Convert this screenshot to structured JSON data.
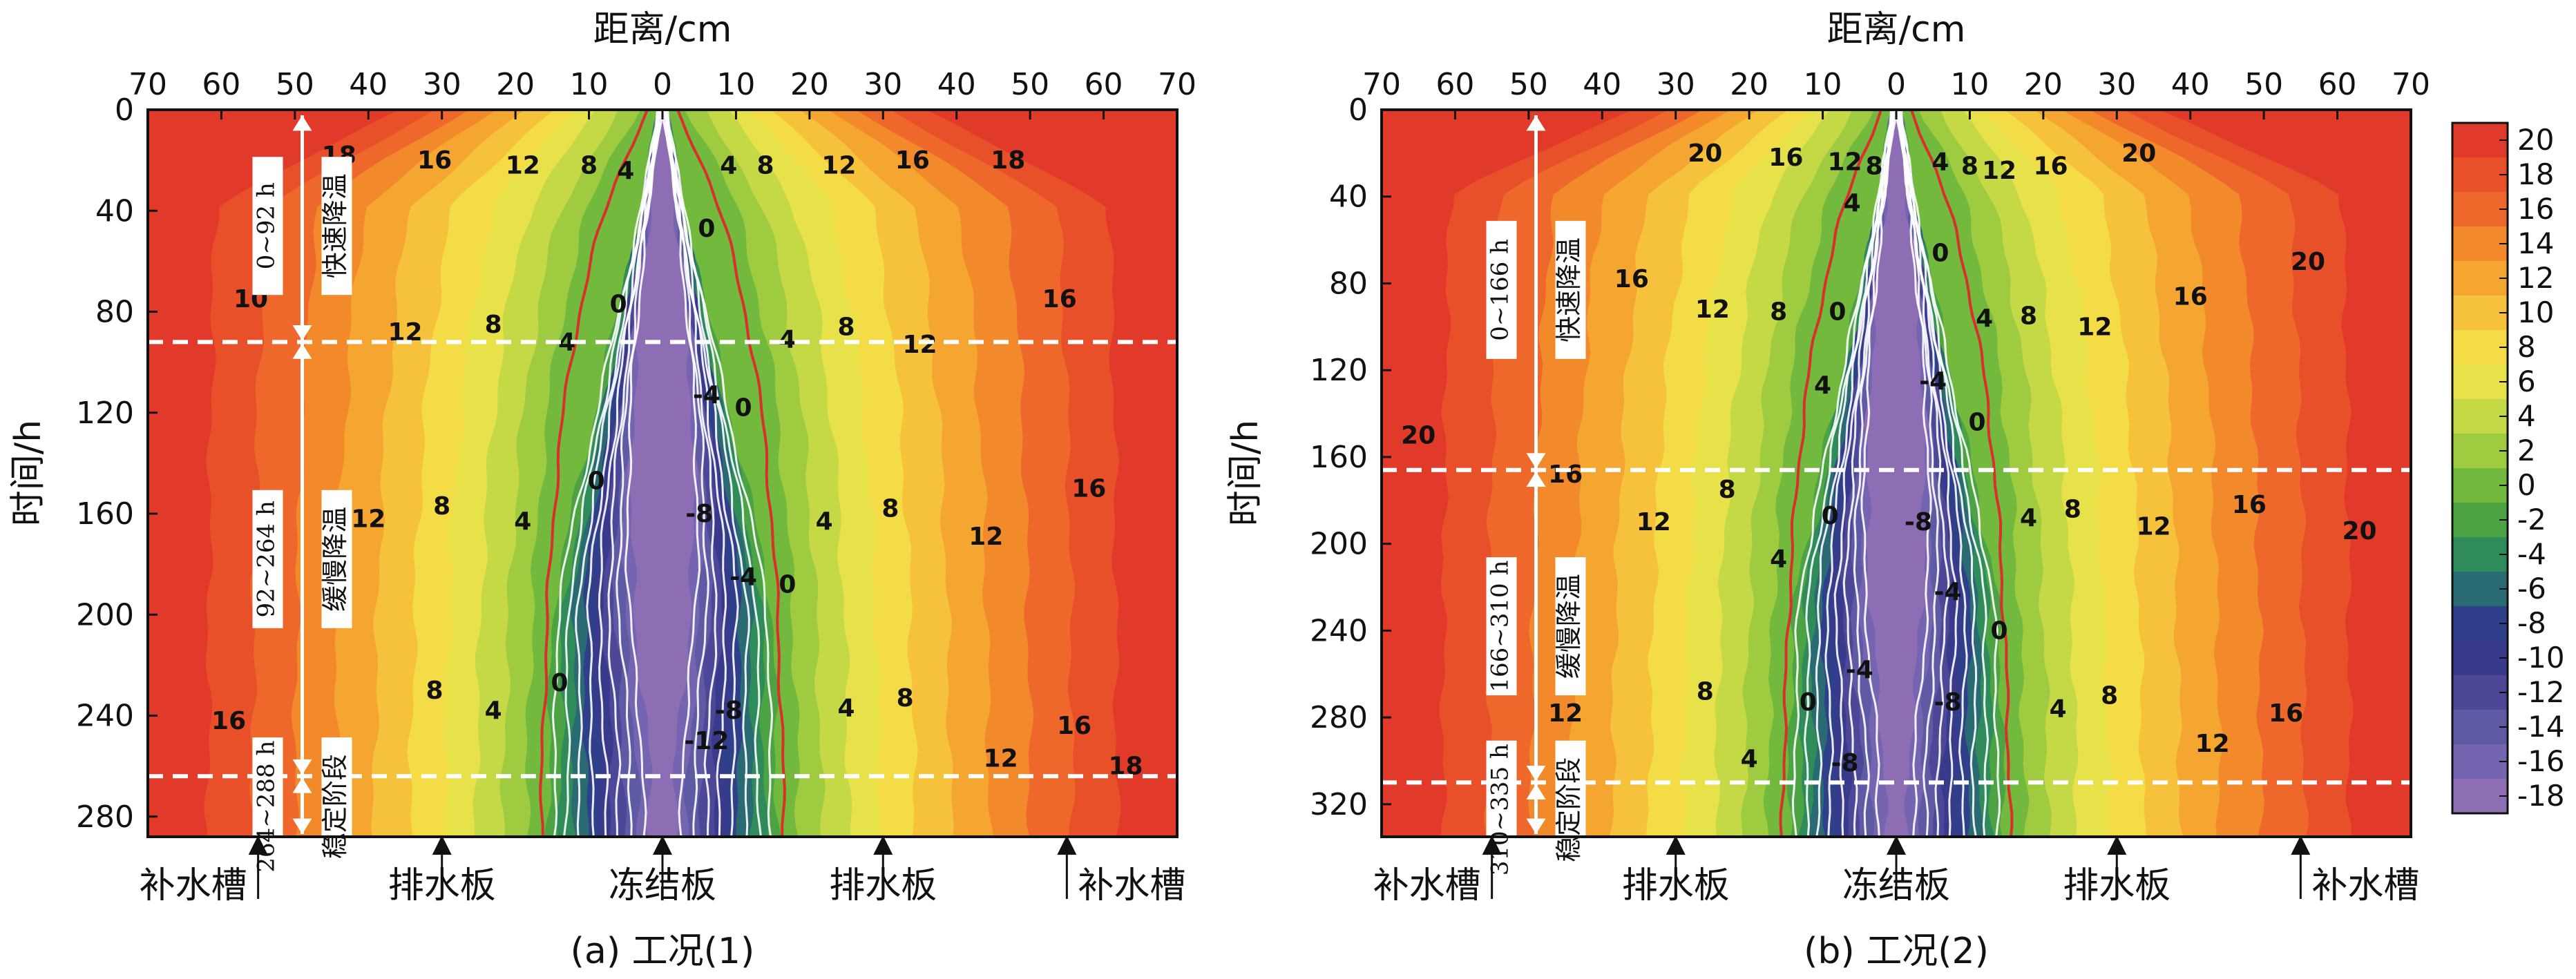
{
  "chart_data": [
    {
      "type": "heatmap",
      "subtitle": "(a) 工况(1)",
      "xlabel": "距离/cm",
      "ylabel": "时间/h",
      "x_ticks": [
        "70",
        "60",
        "50",
        "40",
        "30",
        "20",
        "10",
        "0",
        "10",
        "20",
        "30",
        "40",
        "50",
        "60",
        "70"
      ],
      "y_ticks": [
        "0",
        "40",
        "80",
        "120",
        "160",
        "200",
        "240",
        "280"
      ],
      "xlim": [
        -70,
        70
      ],
      "ylim": [
        0,
        288
      ],
      "front_start_x": 2,
      "front_final_x": 17,
      "front_k": 0.012,
      "zero_line_color": "#d8302a",
      "stage_lines": [
        92,
        264
      ],
      "stages": [
        {
          "range": "0~92 h",
          "name": "快速降温",
          "y0": 0,
          "y1": 92
        },
        {
          "range": "92~264 h",
          "name": "缓慢降温",
          "y0": 92,
          "y1": 264
        },
        {
          "range": "264~288 h",
          "name": "稳定阶段",
          "y0": 264,
          "y1": 288
        }
      ],
      "markers": [
        {
          "label": "补水槽",
          "x": -55,
          "label_side": "left"
        },
        {
          "label": "排水板",
          "x": -30,
          "label_side": "center"
        },
        {
          "label": "冻结板",
          "x": 0,
          "label_side": "center"
        },
        {
          "label": "排水板",
          "x": 30,
          "label_side": "center"
        },
        {
          "label": "补水槽",
          "x": 55,
          "label_side": "right"
        }
      ],
      "contour_labels": [
        {
          "text": "18",
          "x": -44,
          "y": 18
        },
        {
          "text": "16",
          "x": -31,
          "y": 20
        },
        {
          "text": "12",
          "x": -19,
          "y": 22
        },
        {
          "text": "8",
          "x": -10,
          "y": 22
        },
        {
          "text": "4",
          "x": -5,
          "y": 24
        },
        {
          "text": "4",
          "x": 9,
          "y": 22
        },
        {
          "text": "8",
          "x": 14,
          "y": 22
        },
        {
          "text": "12",
          "x": 24,
          "y": 22
        },
        {
          "text": "16",
          "x": 34,
          "y": 20
        },
        {
          "text": "18",
          "x": 47,
          "y": 20
        },
        {
          "text": "0",
          "x": 6,
          "y": 47
        },
        {
          "text": "0",
          "x": -6,
          "y": 77
        },
        {
          "text": "10",
          "x": -56,
          "y": 75
        },
        {
          "text": "16",
          "x": 54,
          "y": 75
        },
        {
          "text": "12",
          "x": -35,
          "y": 88
        },
        {
          "text": "8",
          "x": -23,
          "y": 85
        },
        {
          "text": "4",
          "x": -13,
          "y": 92
        },
        {
          "text": "4",
          "x": 17,
          "y": 91
        },
        {
          "text": "8",
          "x": 25,
          "y": 86
        },
        {
          "text": "12",
          "x": 35,
          "y": 93
        },
        {
          "text": "-4",
          "x": 6,
          "y": 113
        },
        {
          "text": "0",
          "x": 11,
          "y": 118
        },
        {
          "text": "0",
          "x": -9,
          "y": 147
        },
        {
          "text": "8",
          "x": -30,
          "y": 157
        },
        {
          "text": "4",
          "x": -19,
          "y": 163
        },
        {
          "text": "12",
          "x": -40,
          "y": 162
        },
        {
          "text": "-8",
          "x": 5,
          "y": 160
        },
        {
          "text": "4",
          "x": 22,
          "y": 163
        },
        {
          "text": "8",
          "x": 31,
          "y": 158
        },
        {
          "text": "12",
          "x": 44,
          "y": 169
        },
        {
          "text": "16",
          "x": 58,
          "y": 150
        },
        {
          "text": "-4",
          "x": 11,
          "y": 185
        },
        {
          "text": "0",
          "x": 17,
          "y": 188
        },
        {
          "text": "0",
          "x": -14,
          "y": 227
        },
        {
          "text": "8",
          "x": -31,
          "y": 230
        },
        {
          "text": "4",
          "x": -23,
          "y": 238
        },
        {
          "text": "-12",
          "x": 6,
          "y": 250
        },
        {
          "text": "-8",
          "x": 9,
          "y": 238
        },
        {
          "text": "4",
          "x": 25,
          "y": 237
        },
        {
          "text": "8",
          "x": 33,
          "y": 233
        },
        {
          "text": "16",
          "x": -59,
          "y": 242
        },
        {
          "text": "16",
          "x": 56,
          "y": 244
        },
        {
          "text": "18",
          "x": 63,
          "y": 260
        },
        {
          "text": "12",
          "x": 46,
          "y": 257
        }
      ]
    },
    {
      "type": "heatmap",
      "subtitle": "(b) 工况(2)",
      "xlabel": "距离/cm",
      "ylabel": "时间/h",
      "x_ticks": [
        "70",
        "60",
        "50",
        "40",
        "30",
        "20",
        "10",
        "0",
        "10",
        "20",
        "30",
        "40",
        "50",
        "60",
        "70"
      ],
      "y_ticks": [
        "0",
        "40",
        "80",
        "120",
        "160",
        "200",
        "240",
        "280",
        "320"
      ],
      "xlim": [
        -70,
        70
      ],
      "ylim": [
        0,
        335
      ],
      "front_start_x": 2,
      "front_final_x": 16,
      "front_k": 0.01,
      "zero_line_color": "#d8302a",
      "stage_lines": [
        166,
        310
      ],
      "stages": [
        {
          "range": "0~166 h",
          "name": "快速降温",
          "y0": 0,
          "y1": 166
        },
        {
          "range": "166~310 h",
          "name": "缓慢降温",
          "y0": 166,
          "y1": 310
        },
        {
          "range": "310~335 h",
          "name": "稳定阶段",
          "y0": 310,
          "y1": 335
        }
      ],
      "markers": [
        {
          "label": "补水槽",
          "x": -55,
          "label_side": "left"
        },
        {
          "label": "排水板",
          "x": -30,
          "label_side": "center"
        },
        {
          "label": "冻结板",
          "x": 0,
          "label_side": "center"
        },
        {
          "label": "排水板",
          "x": 30,
          "label_side": "center"
        },
        {
          "label": "补水槽",
          "x": 55,
          "label_side": "right"
        }
      ],
      "contour_labels": [
        {
          "text": "20",
          "x": -26,
          "y": 20
        },
        {
          "text": "16",
          "x": -15,
          "y": 22
        },
        {
          "text": "12",
          "x": -7,
          "y": 24
        },
        {
          "text": "8",
          "x": -3,
          "y": 26
        },
        {
          "text": "4",
          "x": 6,
          "y": 24
        },
        {
          "text": "8",
          "x": 10,
          "y": 26
        },
        {
          "text": "12",
          "x": 14,
          "y": 28
        },
        {
          "text": "16",
          "x": 21,
          "y": 26
        },
        {
          "text": "20",
          "x": 33,
          "y": 20
        },
        {
          "text": "4",
          "x": -6,
          "y": 43
        },
        {
          "text": "0",
          "x": 6,
          "y": 66
        },
        {
          "text": "20",
          "x": 56,
          "y": 70
        },
        {
          "text": "16",
          "x": -36,
          "y": 78
        },
        {
          "text": "12",
          "x": -25,
          "y": 92
        },
        {
          "text": "8",
          "x": -16,
          "y": 93
        },
        {
          "text": "0",
          "x": -8,
          "y": 93
        },
        {
          "text": "4",
          "x": 12,
          "y": 96
        },
        {
          "text": "8",
          "x": 18,
          "y": 95
        },
        {
          "text": "12",
          "x": 27,
          "y": 100
        },
        {
          "text": "16",
          "x": 40,
          "y": 86
        },
        {
          "text": "4",
          "x": -10,
          "y": 127
        },
        {
          "text": "-4",
          "x": 5,
          "y": 125
        },
        {
          "text": "0",
          "x": 11,
          "y": 144
        },
        {
          "text": "20",
          "x": -65,
          "y": 150
        },
        {
          "text": "16",
          "x": -45,
          "y": 168
        },
        {
          "text": "8",
          "x": -23,
          "y": 175
        },
        {
          "text": "12",
          "x": -33,
          "y": 190
        },
        {
          "text": "0",
          "x": -9,
          "y": 187
        },
        {
          "text": "-8",
          "x": 3,
          "y": 190
        },
        {
          "text": "4",
          "x": 18,
          "y": 188
        },
        {
          "text": "8",
          "x": 24,
          "y": 184
        },
        {
          "text": "12",
          "x": 35,
          "y": 192
        },
        {
          "text": "16",
          "x": 48,
          "y": 182
        },
        {
          "text": "20",
          "x": 63,
          "y": 194
        },
        {
          "text": "4",
          "x": -16,
          "y": 207
        },
        {
          "text": "-4",
          "x": 7,
          "y": 222
        },
        {
          "text": "0",
          "x": 14,
          "y": 240
        },
        {
          "text": "8",
          "x": -26,
          "y": 268
        },
        {
          "text": "0",
          "x": -12,
          "y": 273
        },
        {
          "text": "-4",
          "x": -5,
          "y": 258
        },
        {
          "text": "-8",
          "x": 7,
          "y": 273
        },
        {
          "text": "4",
          "x": 22,
          "y": 276
        },
        {
          "text": "8",
          "x": 29,
          "y": 270
        },
        {
          "text": "16",
          "x": 53,
          "y": 278
        },
        {
          "text": "12",
          "x": -45,
          "y": 278
        },
        {
          "text": "4",
          "x": -20,
          "y": 299
        },
        {
          "text": "-8",
          "x": -7,
          "y": 301
        },
        {
          "text": "12",
          "x": 43,
          "y": 292
        }
      ]
    }
  ],
  "colorbar": {
    "ticks": [
      "20",
      "18",
      "16",
      "14",
      "12",
      "10",
      "8",
      "6",
      "4",
      "2",
      "0",
      "-2",
      "-4",
      "-6",
      "-8",
      "-10",
      "-12",
      "-14",
      "-16",
      "-18"
    ],
    "values": [
      20,
      18,
      16,
      14,
      12,
      10,
      8,
      6,
      4,
      2,
      0,
      -2,
      -4,
      -6,
      -8,
      -10,
      -12,
      -14,
      -16,
      -18
    ],
    "colors": [
      "#e23a2a",
      "#e8502a",
      "#ee682b",
      "#f28a2c",
      "#f5a631",
      "#f6c23b",
      "#f4dc46",
      "#e8e24a",
      "#c5d845",
      "#9fcb40",
      "#73b93e",
      "#4da343",
      "#2f8c5a",
      "#2a6a72",
      "#303f8a",
      "#3a3a8c",
      "#4c4796",
      "#5e5aa4",
      "#7565b0",
      "#8d6db4"
    ]
  }
}
